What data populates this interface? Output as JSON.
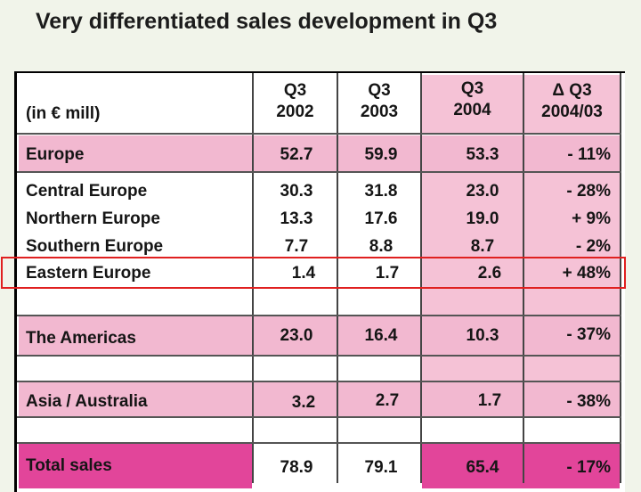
{
  "title": "Very differentiated sales development in Q3",
  "header": {
    "unit": "(in € mill)",
    "col1_line1": "Q3",
    "col1_line2": "2002",
    "col2_line1": "Q3",
    "col2_line2": "2003",
    "col3_line1": "Q3",
    "col3_line2": "2004",
    "col4_line1": "Δ Q3",
    "col4_line2": "2004/03"
  },
  "rows": {
    "europe": {
      "label": "Europe",
      "v2002": "52.7",
      "v2003": "59.9",
      "v2004": "53.3",
      "delta": "- 11%"
    },
    "central": {
      "label": "Central Europe",
      "v2002": "30.3",
      "v2003": "31.8",
      "v2004": "23.0",
      "delta": "- 28%"
    },
    "northern": {
      "label": "Northern Europe",
      "v2002": "13.3",
      "v2003": "17.6",
      "v2004": "19.0",
      "delta": "+ 9%"
    },
    "southern": {
      "label": "Southern Europe",
      "v2002": "7.7",
      "v2003": "8.8",
      "v2004": "8.7",
      "delta": "- 2%"
    },
    "eastern": {
      "label": "Eastern Europe",
      "v2002": "1.4",
      "v2003": "1.7",
      "v2004": "2.6",
      "delta": "+ 48%"
    },
    "americas": {
      "label": "The Americas",
      "v2002": "23.0",
      "v2003": "16.4",
      "v2004": "10.3",
      "delta": "- 37%"
    },
    "asia": {
      "label": "Asia / Australia",
      "v2002": "3.2",
      "v2003": "2.7",
      "v2004": "1.7",
      "delta": "- 38%"
    },
    "total": {
      "label": "Total sales",
      "v2002": "78.9",
      "v2003": "79.1",
      "v2004": "65.4",
      "delta": "- 17%"
    }
  },
  "colors": {
    "band": "#f2b8d0",
    "total": "#e2459a",
    "highlight": "#e02020"
  }
}
